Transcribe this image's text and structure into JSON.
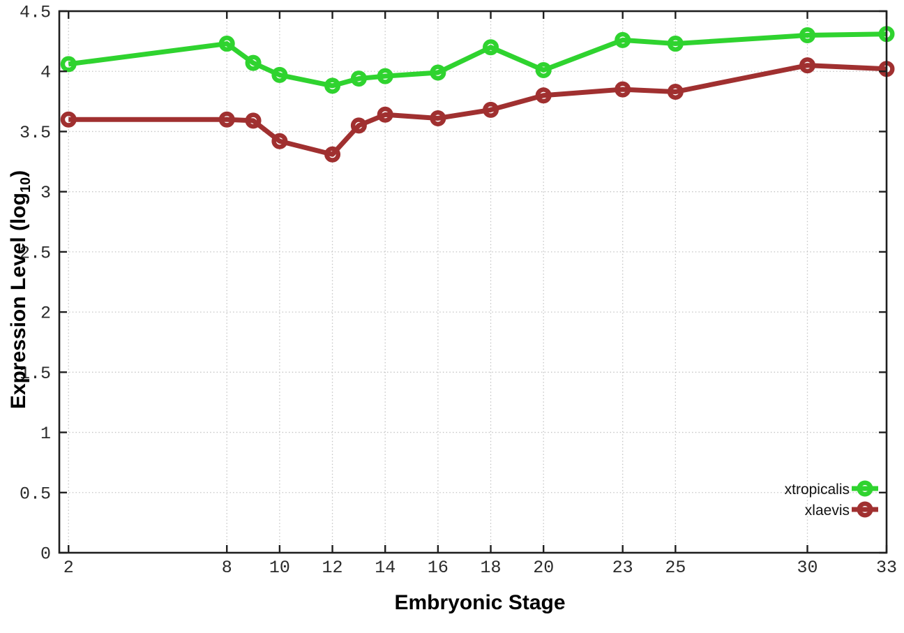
{
  "chart_data": {
    "type": "line",
    "title": "",
    "xlabel": "Embryonic Stage",
    "ylabel": "Expression Level (log10)",
    "ylabel_parts": {
      "prefix": "Expression Level (log",
      "sub": "10",
      "suffix": ")"
    },
    "x": [
      2,
      8,
      9,
      10,
      12,
      13,
      14,
      16,
      18,
      20,
      23,
      25,
      30,
      33
    ],
    "series": [
      {
        "name": "xtropicalis",
        "color": "#2fd32f",
        "marker": "open-circle",
        "values": [
          4.06,
          4.23,
          4.07,
          3.97,
          3.88,
          3.94,
          3.96,
          3.99,
          4.2,
          4.01,
          4.26,
          4.23,
          4.3,
          4.31
        ]
      },
      {
        "name": "xlaevis",
        "color": "#a03030",
        "marker": "open-circle",
        "values": [
          3.6,
          3.6,
          3.59,
          3.42,
          3.31,
          3.55,
          3.64,
          3.61,
          3.68,
          3.8,
          3.85,
          3.83,
          4.05,
          4.02
        ]
      }
    ],
    "x_ticks": {
      "values": [
        2,
        8,
        10,
        12,
        14,
        16,
        18,
        20,
        23,
        25,
        30,
        33
      ],
      "labels": [
        "2",
        "8",
        "10",
        "12",
        "14",
        "16",
        "18",
        "20",
        "23",
        "25",
        "30",
        "33"
      ]
    },
    "y_ticks": {
      "values": [
        0,
        0.5,
        1,
        1.5,
        2,
        2.5,
        3,
        3.5,
        4,
        4.5
      ],
      "labels": [
        "0",
        "0.5",
        "1",
        "1.5",
        "2",
        "2.5",
        "3",
        "3.5",
        "4",
        "4.5"
      ]
    },
    "xlim": [
      1.65,
      33
    ],
    "ylim": [
      0,
      4.5
    ],
    "grid": true,
    "legend_position": "inside-bottom-right",
    "axis_color": "#1f1f1f",
    "grid_color": "#c4c4c4"
  }
}
